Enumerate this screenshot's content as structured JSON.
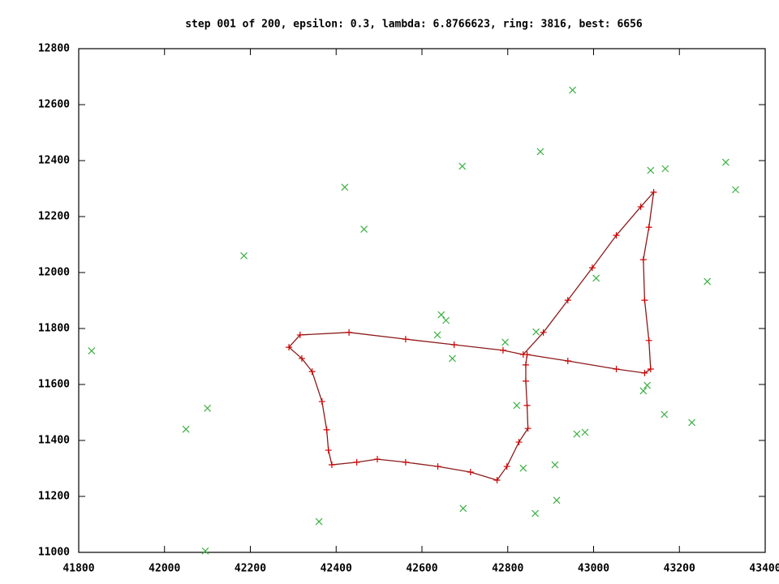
{
  "chart_data": {
    "type": "scatter",
    "title": "step 001 of 200, epsilon: 0.3, lambda: 6.8766623, ring: 3816, best: 6656",
    "xlim": [
      41800,
      43400
    ],
    "xticks": [
      41800,
      42000,
      42200,
      42400,
      42600,
      42800,
      43000,
      43200,
      43400
    ],
    "ylim": [
      11000,
      12800
    ],
    "yticks": [
      11000,
      11200,
      11400,
      11600,
      11800,
      12000,
      12200,
      12400,
      12600,
      12800
    ],
    "series": [
      {
        "type": "scatter",
        "color": "#3cb043",
        "x": [
          41830,
          42050,
          42100,
          42095,
          42185,
          42360,
          42420,
          42465,
          42645,
          42656,
          42636,
          42671,
          42694,
          42696,
          42794,
          42821,
          42836,
          42866,
          42864,
          42876,
          42910,
          42914,
          42951,
          42961,
          42980,
          43006,
          43116,
          43125,
          43133,
          43167,
          43165,
          43229,
          43265,
          43308,
          43331
        ],
        "values": [
          11720,
          11440,
          11515,
          11005,
          12060,
          11110,
          12305,
          12155,
          11849,
          11829,
          11777,
          11693,
          12380,
          11157,
          11751,
          11525,
          11301,
          11788,
          11139,
          12432,
          11313,
          11186,
          12652,
          11423,
          11429,
          11980,
          11577,
          11597,
          12365,
          12371,
          11493,
          11464,
          11968,
          12394,
          12296
        ]
      },
      {
        "type": "line",
        "color": "#d00000",
        "x": [
          42836,
          42789,
          42675,
          42562,
          42430,
          42316,
          42290,
          42320,
          42344,
          42367,
          42378,
          42382,
          42390,
          42448,
          42496,
          42562,
          42637,
          42713,
          42775,
          42798,
          42826,
          42847,
          42845,
          42842,
          42842,
          42845,
          42940,
          43053,
          43119,
          43133,
          43129,
          43119,
          43116,
          43129,
          43140,
          43110,
          43053,
          42997,
          42940,
          42883
        ],
        "values": [
          11707,
          11722,
          11742,
          11762,
          11786,
          11777,
          11733,
          11693,
          11646,
          11539,
          11438,
          11365,
          11313,
          11322,
          11333,
          11322,
          11307,
          11287,
          11258,
          11307,
          11394,
          11443,
          11525,
          11612,
          11670,
          11707,
          11684,
          11655,
          11641,
          11655,
          11757,
          11901,
          12046,
          12162,
          12287,
          12235,
          12133,
          12017,
          11901,
          11786
        ]
      }
    ]
  }
}
